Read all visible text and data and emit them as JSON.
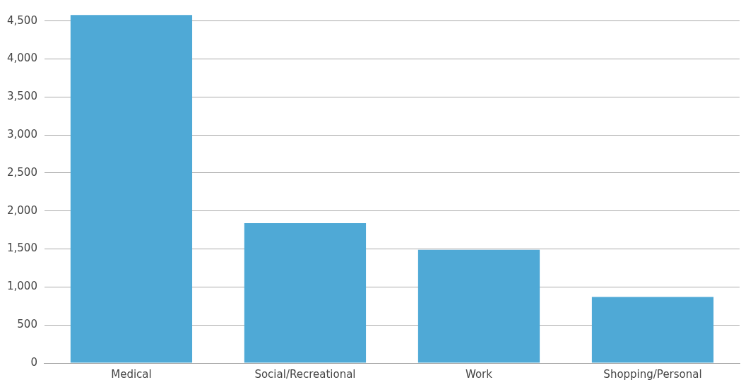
{
  "chart_data": {
    "type": "bar",
    "categories": [
      "Medical",
      "Social/Recreational",
      "Work",
      "Shopping/Personal"
    ],
    "values": [
      4580,
      1840,
      1490,
      870
    ],
    "color": "#4fa9d6",
    "ylim": [
      0,
      4600
    ],
    "yticks": [
      0,
      500,
      {
        "value": 1000,
        "label": "1,000"
      },
      {
        "value": 1500,
        "label": "1,500"
      },
      {
        "value": 2000,
        "label": "2,000"
      },
      {
        "value": 2500,
        "label": "2,500"
      },
      {
        "value": 3000,
        "label": "3,000"
      },
      {
        "value": 3500,
        "label": "3,500"
      },
      {
        "value": 4000,
        "label": "4,000"
      },
      {
        "value": 4500,
        "label": "4,500"
      }
    ],
    "grid": "y"
  }
}
